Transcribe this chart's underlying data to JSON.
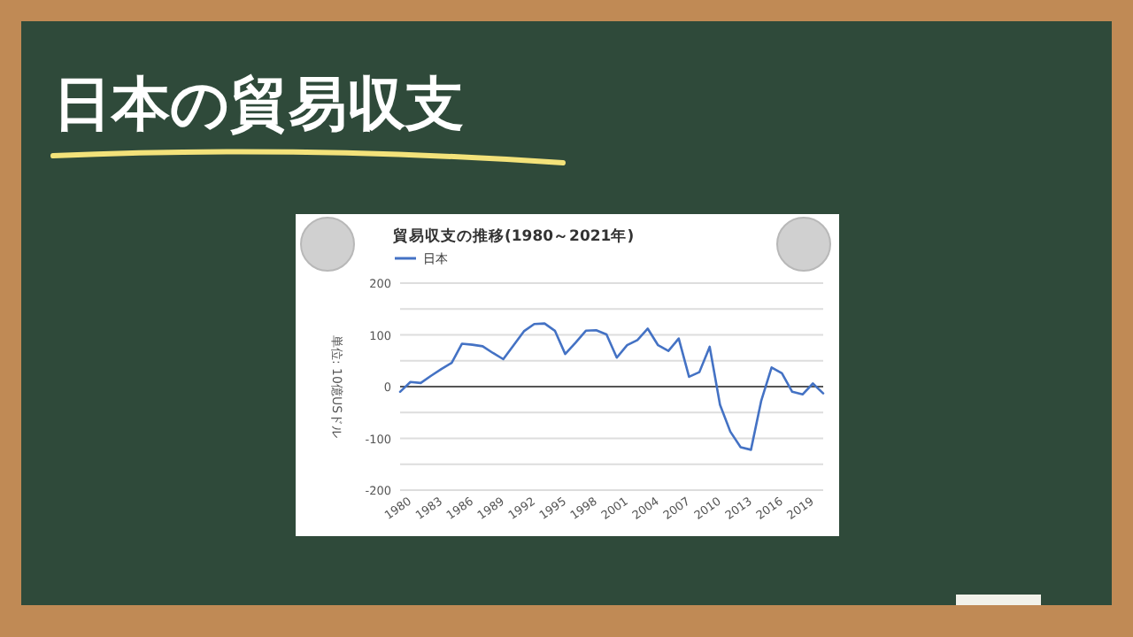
{
  "chart_data": {
    "type": "line",
    "title": "日本の貿易収支",
    "subtitle": "貿易収支の推移(1980～2021年)",
    "ylabel": "単位: 10億USドル",
    "legend": "top left",
    "grid": "y",
    "marker": "none",
    "line_style": "solid",
    "x": [
      1980,
      1981,
      1982,
      1983,
      1984,
      1985,
      1986,
      1987,
      1988,
      1989,
      1990,
      1991,
      1992,
      1993,
      1994,
      1995,
      1996,
      1997,
      1998,
      1999,
      2000,
      2001,
      2002,
      2003,
      2004,
      2005,
      2006,
      2007,
      2008,
      2009,
      2010,
      2011,
      2012,
      2013,
      2014,
      2015,
      2016,
      2017,
      2018,
      2019,
      2020,
      2021
    ],
    "series": [
      {
        "name": "日本",
        "color": "#4472c4",
        "values": [
          -10,
          9,
          7,
          21,
          34,
          46,
          83,
          81,
          78,
          65,
          53,
          80,
          107,
          121,
          122,
          108,
          63,
          85,
          108,
          109,
          101,
          56,
          80,
          90,
          112,
          80,
          69,
          93,
          19,
          28,
          77,
          -35,
          -87,
          -117,
          -122,
          -27,
          37,
          26,
          -10,
          -15,
          6,
          -13
        ]
      }
    ],
    "xlim": [
      1980,
      2021
    ],
    "xticks": [
      1980,
      1983,
      1986,
      1989,
      1992,
      1995,
      1998,
      2001,
      2004,
      2007,
      2010,
      2013,
      2016,
      2019
    ],
    "ylim": [
      -200,
      200
    ],
    "yticks": [
      200,
      {
        "value": 150,
        "label": null
      },
      100,
      {
        "value": 50,
        "label": null
      },
      0,
      {
        "value": -50,
        "label": null
      },
      -100,
      {
        "value": -150,
        "label": null
      },
      -200
    ]
  }
}
